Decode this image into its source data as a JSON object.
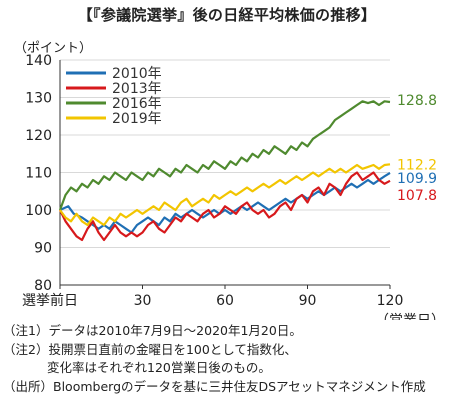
{
  "title": "【『参議院選挙』後の日経平均株価の推移】",
  "unit_label": "（ポイント）",
  "chart_data": {
    "type": "line",
    "ylim": [
      80,
      140
    ],
    "yticks": [
      80,
      90,
      100,
      110,
      120,
      130,
      140
    ],
    "xlim": [
      0,
      120
    ],
    "xticks": [
      {
        "x": 0,
        "label": "選挙前日"
      },
      {
        "x": 30,
        "label": "30"
      },
      {
        "x": 60,
        "label": "60"
      },
      {
        "x": 90,
        "label": "90"
      },
      {
        "x": 120,
        "label": "120"
      }
    ],
    "xlabel": "（営業日）",
    "legend_position": "top-left",
    "series": [
      {
        "name": "2010年",
        "color": "#1f6fb4",
        "end_label": "109.9",
        "points": [
          [
            0,
            100
          ],
          [
            3,
            101
          ],
          [
            5,
            99
          ],
          [
            8,
            98
          ],
          [
            10,
            97
          ],
          [
            12,
            96
          ],
          [
            14,
            95
          ],
          [
            16,
            96
          ],
          [
            18,
            95
          ],
          [
            20,
            97
          ],
          [
            22,
            96
          ],
          [
            24,
            95
          ],
          [
            26,
            94
          ],
          [
            28,
            96
          ],
          [
            30,
            97
          ],
          [
            32,
            98
          ],
          [
            34,
            97
          ],
          [
            36,
            96
          ],
          [
            38,
            98
          ],
          [
            40,
            97
          ],
          [
            42,
            99
          ],
          [
            44,
            98
          ],
          [
            46,
            99
          ],
          [
            48,
            100
          ],
          [
            50,
            99
          ],
          [
            52,
            98
          ],
          [
            54,
            99
          ],
          [
            56,
            100
          ],
          [
            58,
            99
          ],
          [
            60,
            100
          ],
          [
            62,
            99
          ],
          [
            64,
            100
          ],
          [
            66,
            101
          ],
          [
            68,
            100
          ],
          [
            70,
            101
          ],
          [
            72,
            102
          ],
          [
            74,
            101
          ],
          [
            76,
            100
          ],
          [
            78,
            101
          ],
          [
            80,
            102
          ],
          [
            82,
            103
          ],
          [
            84,
            102
          ],
          [
            86,
            103
          ],
          [
            88,
            104
          ],
          [
            90,
            103
          ],
          [
            92,
            104
          ],
          [
            94,
            105
          ],
          [
            96,
            104
          ],
          [
            98,
            105
          ],
          [
            100,
            106
          ],
          [
            102,
            105
          ],
          [
            104,
            106
          ],
          [
            106,
            107
          ],
          [
            108,
            106
          ],
          [
            110,
            107
          ],
          [
            112,
            108
          ],
          [
            114,
            107
          ],
          [
            116,
            108
          ],
          [
            118,
            109
          ],
          [
            120,
            109.9
          ]
        ]
      },
      {
        "name": "2013年",
        "color": "#d7191c",
        "end_label": "107.8",
        "points": [
          [
            0,
            100
          ],
          [
            2,
            97
          ],
          [
            4,
            95
          ],
          [
            6,
            93
          ],
          [
            8,
            92
          ],
          [
            10,
            95
          ],
          [
            12,
            97
          ],
          [
            14,
            94
          ],
          [
            16,
            92
          ],
          [
            18,
            94
          ],
          [
            20,
            96
          ],
          [
            22,
            94
          ],
          [
            24,
            93
          ],
          [
            26,
            94
          ],
          [
            28,
            93
          ],
          [
            30,
            94
          ],
          [
            32,
            96
          ],
          [
            34,
            97
          ],
          [
            36,
            95
          ],
          [
            38,
            94
          ],
          [
            40,
            96
          ],
          [
            42,
            98
          ],
          [
            44,
            97
          ],
          [
            46,
            99
          ],
          [
            48,
            98
          ],
          [
            50,
            97
          ],
          [
            52,
            99
          ],
          [
            54,
            100
          ],
          [
            56,
            98
          ],
          [
            58,
            99
          ],
          [
            60,
            101
          ],
          [
            62,
            100
          ],
          [
            64,
            99
          ],
          [
            66,
            101
          ],
          [
            68,
            102
          ],
          [
            70,
            100
          ],
          [
            72,
            99
          ],
          [
            74,
            100
          ],
          [
            76,
            98
          ],
          [
            78,
            99
          ],
          [
            80,
            101
          ],
          [
            82,
            102
          ],
          [
            84,
            100
          ],
          [
            86,
            103
          ],
          [
            88,
            104
          ],
          [
            90,
            102
          ],
          [
            92,
            105
          ],
          [
            94,
            106
          ],
          [
            96,
            104
          ],
          [
            98,
            107
          ],
          [
            100,
            106
          ],
          [
            102,
            104
          ],
          [
            104,
            107
          ],
          [
            106,
            109
          ],
          [
            108,
            110
          ],
          [
            110,
            108
          ],
          [
            112,
            109
          ],
          [
            114,
            110
          ],
          [
            116,
            108
          ],
          [
            118,
            107
          ],
          [
            120,
            107.8
          ]
        ]
      },
      {
        "name": "2016年",
        "color": "#4f8a2f",
        "end_label": "128.8",
        "points": [
          [
            0,
            100
          ],
          [
            2,
            104
          ],
          [
            4,
            106
          ],
          [
            6,
            105
          ],
          [
            8,
            107
          ],
          [
            10,
            106
          ],
          [
            12,
            108
          ],
          [
            14,
            107
          ],
          [
            16,
            109
          ],
          [
            18,
            108
          ],
          [
            20,
            110
          ],
          [
            22,
            109
          ],
          [
            24,
            108
          ],
          [
            26,
            110
          ],
          [
            28,
            109
          ],
          [
            30,
            108
          ],
          [
            32,
            110
          ],
          [
            34,
            109
          ],
          [
            36,
            111
          ],
          [
            38,
            110
          ],
          [
            40,
            109
          ],
          [
            42,
            111
          ],
          [
            44,
            110
          ],
          [
            46,
            112
          ],
          [
            48,
            111
          ],
          [
            50,
            110
          ],
          [
            52,
            112
          ],
          [
            54,
            111
          ],
          [
            56,
            113
          ],
          [
            58,
            112
          ],
          [
            60,
            111
          ],
          [
            62,
            113
          ],
          [
            64,
            112
          ],
          [
            66,
            114
          ],
          [
            68,
            113
          ],
          [
            70,
            115
          ],
          [
            72,
            114
          ],
          [
            74,
            116
          ],
          [
            76,
            115
          ],
          [
            78,
            117
          ],
          [
            80,
            116
          ],
          [
            82,
            115
          ],
          [
            84,
            117
          ],
          [
            86,
            116
          ],
          [
            88,
            118
          ],
          [
            90,
            117
          ],
          [
            92,
            119
          ],
          [
            94,
            120
          ],
          [
            96,
            121
          ],
          [
            98,
            122
          ],
          [
            100,
            124
          ],
          [
            102,
            125
          ],
          [
            104,
            126
          ],
          [
            106,
            127
          ],
          [
            108,
            128
          ],
          [
            110,
            129
          ],
          [
            112,
            128.5
          ],
          [
            114,
            129
          ],
          [
            116,
            128
          ],
          [
            118,
            129
          ],
          [
            120,
            128.8
          ]
        ]
      },
      {
        "name": "2019年",
        "color": "#f2c500",
        "end_label": "112.2",
        "points": [
          [
            0,
            100
          ],
          [
            2,
            98
          ],
          [
            4,
            97
          ],
          [
            6,
            99
          ],
          [
            8,
            97
          ],
          [
            10,
            96
          ],
          [
            12,
            98
          ],
          [
            14,
            97
          ],
          [
            16,
            96
          ],
          [
            18,
            98
          ],
          [
            20,
            97
          ],
          [
            22,
            99
          ],
          [
            24,
            98
          ],
          [
            26,
            99
          ],
          [
            28,
            100
          ],
          [
            30,
            99
          ],
          [
            32,
            100
          ],
          [
            34,
            101
          ],
          [
            36,
            100
          ],
          [
            38,
            102
          ],
          [
            40,
            101
          ],
          [
            42,
            100
          ],
          [
            44,
            102
          ],
          [
            46,
            103
          ],
          [
            48,
            101
          ],
          [
            50,
            102
          ],
          [
            52,
            103
          ],
          [
            54,
            102
          ],
          [
            56,
            104
          ],
          [
            58,
            103
          ],
          [
            60,
            104
          ],
          [
            62,
            105
          ],
          [
            64,
            104
          ],
          [
            66,
            105
          ],
          [
            68,
            106
          ],
          [
            70,
            105
          ],
          [
            72,
            106
          ],
          [
            74,
            107
          ],
          [
            76,
            106
          ],
          [
            78,
            107
          ],
          [
            80,
            108
          ],
          [
            82,
            107
          ],
          [
            84,
            108
          ],
          [
            86,
            109
          ],
          [
            88,
            108
          ],
          [
            90,
            109
          ],
          [
            92,
            110
          ],
          [
            94,
            109
          ],
          [
            96,
            110
          ],
          [
            98,
            111
          ],
          [
            100,
            110
          ],
          [
            102,
            111
          ],
          [
            104,
            110
          ],
          [
            106,
            111
          ],
          [
            108,
            112
          ],
          [
            110,
            111
          ],
          [
            112,
            111.5
          ],
          [
            114,
            112
          ],
          [
            116,
            111
          ],
          [
            118,
            112
          ],
          [
            120,
            112.2
          ]
        ]
      }
    ]
  },
  "notes": [
    "（注1）データは2010年7月9日～2020年1月20日。",
    "（注2）投開票日直前の金曜日を100として指数化、",
    "変化率はそれぞれ120営業日後のもの。",
    "（出所）Bloombergのデータを基に三井住友DSアセットマネジメント作成"
  ]
}
